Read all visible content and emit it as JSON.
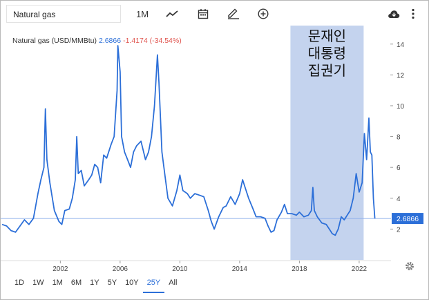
{
  "toolbar": {
    "search_value": "Natural gas",
    "period_button": "1M",
    "icons": [
      "line-chart-icon",
      "calendar-icon",
      "pencil-icon",
      "add-circle-icon",
      "cloud-download-icon",
      "more-vert-icon"
    ]
  },
  "legend": {
    "name": "Natural gas (USD/MMBtu)",
    "value": "2.6866",
    "change": "-1.4174 (-34.54%)"
  },
  "annotation": {
    "lines": [
      "문재인",
      "대통령",
      "집권기"
    ],
    "color": "#c4d3ee"
  },
  "price_label": "2.6866",
  "ranges": [
    "1D",
    "1W",
    "1M",
    "6M",
    "1Y",
    "5Y",
    "10Y",
    "25Y",
    "All"
  ],
  "active_range": "25Y",
  "colors": {
    "line": "#2c6fd8",
    "accent": "#2c6fd8",
    "negative": "#e0554f",
    "shade": "#c4d3ee"
  },
  "chart_data": {
    "type": "line",
    "title": "",
    "xlabel": "",
    "ylabel": "",
    "xlim": [
      1998.1,
      2023.9
    ],
    "ylim": [
      0,
      15.2
    ],
    "x_ticks": [
      "2002",
      "2006",
      "2010",
      "2014",
      "2018",
      "2022"
    ],
    "y_ticks": [
      "2",
      "4",
      "6",
      "8",
      "10",
      "12",
      "14"
    ],
    "y_axis_position": "right",
    "grid": false,
    "shaded_region": {
      "x_start": 2017.4,
      "x_end": 2022.3
    },
    "series": [
      {
        "points": [
          [
            1998.1,
            2.3
          ],
          [
            1998.4,
            2.2
          ],
          [
            1998.7,
            1.9
          ],
          [
            1999.0,
            1.8
          ],
          [
            1999.3,
            2.2
          ],
          [
            1999.6,
            2.6
          ],
          [
            1999.9,
            2.3
          ],
          [
            2000.2,
            2.7
          ],
          [
            2000.5,
            4.3
          ],
          [
            2000.7,
            5.2
          ],
          [
            2000.9,
            6.0
          ],
          [
            2001.0,
            9.8
          ],
          [
            2001.1,
            6.5
          ],
          [
            2001.3,
            5.0
          ],
          [
            2001.6,
            3.2
          ],
          [
            2001.9,
            2.5
          ],
          [
            2002.1,
            2.3
          ],
          [
            2002.3,
            3.2
          ],
          [
            2002.6,
            3.3
          ],
          [
            2002.8,
            4.0
          ],
          [
            2003.0,
            5.2
          ],
          [
            2003.1,
            8.0
          ],
          [
            2003.2,
            5.6
          ],
          [
            2003.4,
            5.8
          ],
          [
            2003.6,
            4.8
          ],
          [
            2003.9,
            5.2
          ],
          [
            2004.1,
            5.5
          ],
          [
            2004.3,
            6.2
          ],
          [
            2004.5,
            6.0
          ],
          [
            2004.7,
            5.0
          ],
          [
            2004.9,
            6.8
          ],
          [
            2005.1,
            6.6
          ],
          [
            2005.4,
            7.5
          ],
          [
            2005.6,
            8.0
          ],
          [
            2005.8,
            11.0
          ],
          [
            2005.85,
            13.9
          ],
          [
            2006.0,
            12.2
          ],
          [
            2006.1,
            8.0
          ],
          [
            2006.3,
            7.0
          ],
          [
            2006.5,
            6.5
          ],
          [
            2006.7,
            6.0
          ],
          [
            2006.9,
            7.0
          ],
          [
            2007.1,
            7.4
          ],
          [
            2007.4,
            7.7
          ],
          [
            2007.7,
            6.5
          ],
          [
            2007.9,
            7.0
          ],
          [
            2008.1,
            8.0
          ],
          [
            2008.3,
            10.0
          ],
          [
            2008.5,
            13.3
          ],
          [
            2008.6,
            11.5
          ],
          [
            2008.8,
            7.0
          ],
          [
            2009.0,
            5.5
          ],
          [
            2009.2,
            4.0
          ],
          [
            2009.5,
            3.5
          ],
          [
            2009.8,
            4.5
          ],
          [
            2010.0,
            5.5
          ],
          [
            2010.2,
            4.5
          ],
          [
            2010.5,
            4.3
          ],
          [
            2010.7,
            4.0
          ],
          [
            2011.0,
            4.3
          ],
          [
            2011.3,
            4.2
          ],
          [
            2011.6,
            4.1
          ],
          [
            2011.9,
            3.2
          ],
          [
            2012.1,
            2.5
          ],
          [
            2012.3,
            2.0
          ],
          [
            2012.6,
            2.8
          ],
          [
            2012.9,
            3.4
          ],
          [
            2013.1,
            3.5
          ],
          [
            2013.4,
            4.1
          ],
          [
            2013.7,
            3.6
          ],
          [
            2014.0,
            4.3
          ],
          [
            2014.2,
            5.2
          ],
          [
            2014.4,
            4.6
          ],
          [
            2014.6,
            4.0
          ],
          [
            2014.9,
            3.3
          ],
          [
            2015.1,
            2.8
          ],
          [
            2015.4,
            2.8
          ],
          [
            2015.7,
            2.7
          ],
          [
            2015.9,
            2.2
          ],
          [
            2016.1,
            1.8
          ],
          [
            2016.3,
            1.9
          ],
          [
            2016.5,
            2.6
          ],
          [
            2016.8,
            3.1
          ],
          [
            2017.0,
            3.6
          ],
          [
            2017.2,
            3.0
          ],
          [
            2017.5,
            3.0
          ],
          [
            2017.8,
            2.9
          ],
          [
            2018.0,
            3.1
          ],
          [
            2018.3,
            2.8
          ],
          [
            2018.6,
            2.9
          ],
          [
            2018.8,
            3.2
          ],
          [
            2018.9,
            4.7
          ],
          [
            2019.0,
            3.2
          ],
          [
            2019.2,
            2.8
          ],
          [
            2019.5,
            2.4
          ],
          [
            2019.8,
            2.3
          ],
          [
            2020.0,
            2.0
          ],
          [
            2020.2,
            1.7
          ],
          [
            2020.4,
            1.6
          ],
          [
            2020.6,
            2.0
          ],
          [
            2020.8,
            2.8
          ],
          [
            2021.0,
            2.6
          ],
          [
            2021.2,
            2.9
          ],
          [
            2021.4,
            3.2
          ],
          [
            2021.6,
            4.0
          ],
          [
            2021.8,
            5.6
          ],
          [
            2022.0,
            4.4
          ],
          [
            2022.2,
            5.0
          ],
          [
            2022.35,
            8.2
          ],
          [
            2022.5,
            6.5
          ],
          [
            2022.65,
            9.2
          ],
          [
            2022.75,
            7.0
          ],
          [
            2022.85,
            6.8
          ],
          [
            2022.95,
            4.0
          ],
          [
            2023.05,
            2.6866
          ]
        ]
      }
    ]
  }
}
